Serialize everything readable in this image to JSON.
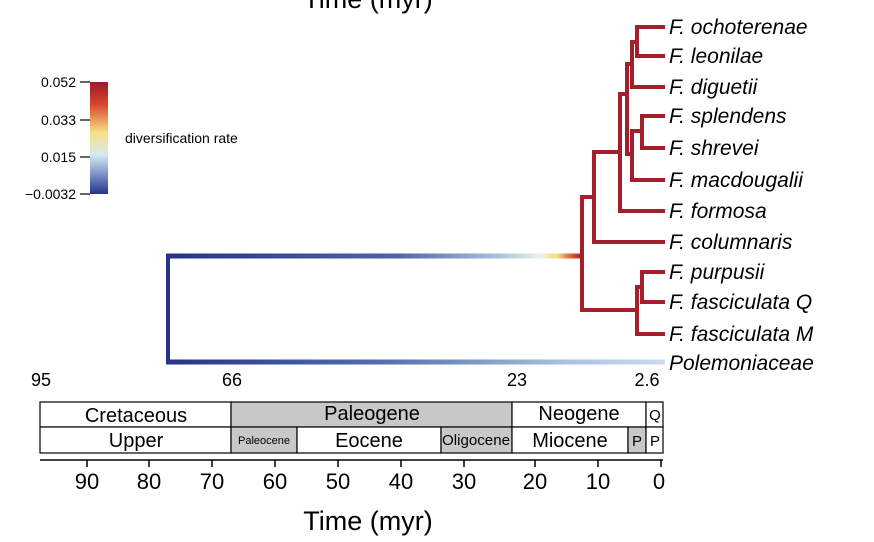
{
  "top_title": "Time (myr)",
  "bottom_title": "Time (myr)",
  "legend": {
    "label": "diversification rate",
    "ticks": [
      "0.052",
      "0.033",
      "0.015",
      "−0.0032"
    ],
    "colors": [
      "#9e1a2b",
      "#d8452e",
      "#f7e183",
      "#d7e8f1",
      "#6f86bd",
      "#263389"
    ]
  },
  "tips": [
    "F. ochoterenae",
    "F. leonilae",
    "F. diguetii",
    "F. splendens",
    "F. shrevei",
    "F. macdougalii",
    "F. formosa",
    "F. columnaris",
    "F. purpusii",
    "F. fasciculata Q",
    "F. fasciculata M",
    "Polemoniaceae"
  ],
  "node_ages": [
    "95",
    "66",
    "23",
    "2.6"
  ],
  "periods": [
    {
      "label": "Cretaceous",
      "start": 95,
      "end": 66,
      "color": "#ffffff"
    },
    {
      "label": "Paleogene",
      "start": 66,
      "end": 23,
      "color": "#c8c8c8"
    },
    {
      "label": "Neogene",
      "start": 23,
      "end": 2.6,
      "color": "#ffffff"
    },
    {
      "label": "Q",
      "start": 2.6,
      "end": 0,
      "color": "#ffffff"
    }
  ],
  "epochs": [
    {
      "label": "Upper",
      "start": 95,
      "end": 66,
      "color": "#ffffff"
    },
    {
      "label": "Paleocene",
      "start": 66,
      "end": 56,
      "color": "#c8c8c8"
    },
    {
      "label": "Eocene",
      "start": 56,
      "end": 34,
      "color": "#ffffff"
    },
    {
      "label": "Oligocene",
      "start": 34,
      "end": 23,
      "color": "#c8c8c8"
    },
    {
      "label": "Miocene",
      "start": 23,
      "end": 5.3,
      "color": "#ffffff"
    },
    {
      "label": "P",
      "start": 5.3,
      "end": 2.6,
      "color": "#c8c8c8"
    },
    {
      "label": "P",
      "start": 2.6,
      "end": 0,
      "color": "#ffffff"
    }
  ],
  "axis_ticks": [
    "90",
    "80",
    "70",
    "60",
    "50",
    "40",
    "30",
    "20",
    "10",
    "0"
  ]
}
